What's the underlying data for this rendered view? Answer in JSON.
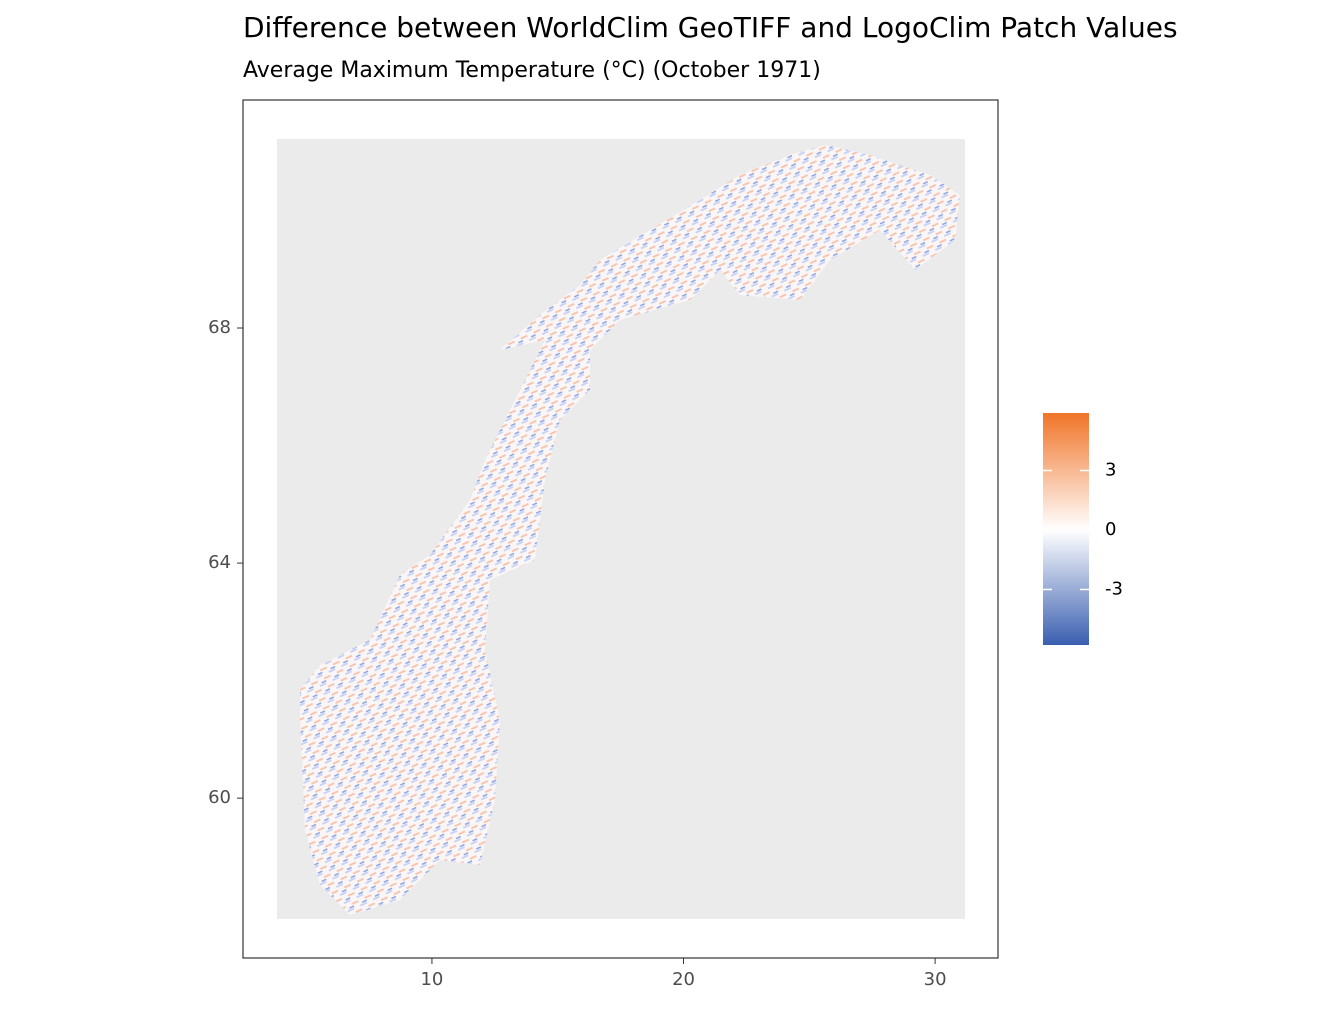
{
  "chart_data": {
    "type": "raster",
    "title": "Difference between WorldClim GeoTIFF and LogoClim Patch Values",
    "subtitle": "Average Maximum Temperature (°C) (October 1971)",
    "xlim": [
      2.49,
      32.5
    ],
    "xticks": [
      10,
      20,
      30
    ],
    "ylim": [
      57.28,
      71.88
    ],
    "yticks": [
      60,
      64,
      68
    ],
    "colorbar": {
      "lim": [
        -5.8,
        5.9
      ],
      "ticks": [
        -3,
        0,
        3
      ],
      "low": "#3a5fb0",
      "mid": "#ffffff",
      "high": "#f07428"
    }
  }
}
